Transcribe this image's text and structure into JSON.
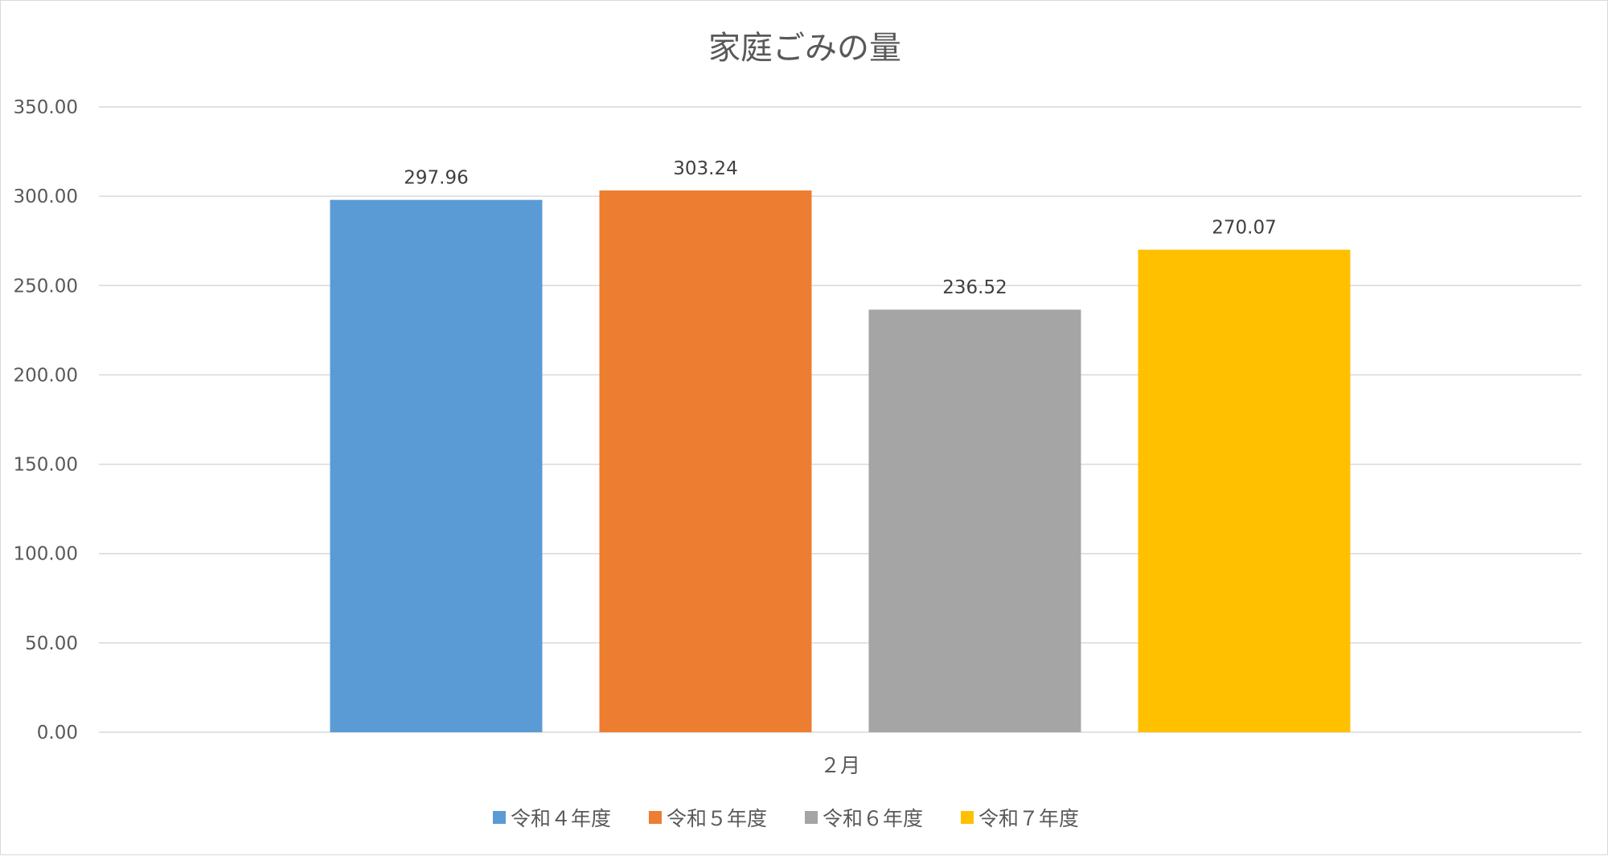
{
  "chart_data": {
    "type": "bar",
    "title": "家庭ごみの量",
    "categories": [
      "２月"
    ],
    "series": [
      {
        "name": "令和４年度",
        "values": [
          297.96
        ],
        "color": "#5B9BD5"
      },
      {
        "name": "令和５年度",
        "values": [
          303.24
        ],
        "color": "#ED7D31"
      },
      {
        "name": "令和６年度",
        "values": [
          236.52
        ],
        "color": "#A5A5A5"
      },
      {
        "name": "令和７年度",
        "values": [
          270.07
        ],
        "color": "#FFC000"
      }
    ],
    "data_labels": [
      "297.96",
      "303.24",
      "236.52",
      "270.07"
    ],
    "y_ticks": [
      "0.00",
      "50.00",
      "100.00",
      "150.00",
      "200.00",
      "250.00",
      "300.00",
      "350.00"
    ],
    "ylim": [
      0,
      350
    ],
    "grid": true,
    "legend_position": "bottom",
    "xlabel": "",
    "ylabel": ""
  }
}
